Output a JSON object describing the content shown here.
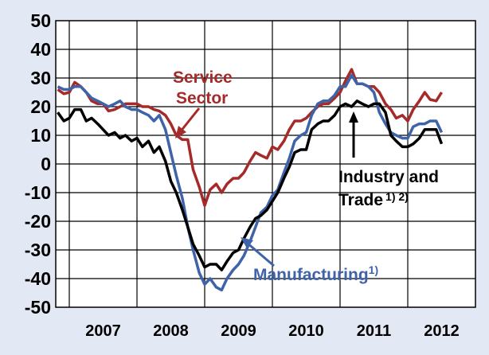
{
  "chart_data": {
    "type": "line",
    "title": "",
    "xlabel": "",
    "ylabel": "",
    "ylim": [
      -50,
      50
    ],
    "yticks": [
      50,
      40,
      30,
      20,
      10,
      0,
      -10,
      -20,
      -30,
      -40,
      -50
    ],
    "xlim": [
      2006.3,
      2012.5
    ],
    "xtick_labels": [
      {
        "label": "2007",
        "x": 2007.0
      },
      {
        "label": "2008",
        "x": 2008.0
      },
      {
        "label": "2009",
        "x": 2009.0
      },
      {
        "label": "2010",
        "x": 2010.0
      },
      {
        "label": "2011",
        "x": 2011.0
      },
      {
        "label": "2012",
        "x": 2012.0
      }
    ],
    "grid": true,
    "series": [
      {
        "name": "Service Sector",
        "color": "#a52a2a",
        "points": [
          [
            2006.33,
            26
          ],
          [
            2006.42,
            24.5
          ],
          [
            2006.5,
            25
          ],
          [
            2006.58,
            28.5
          ],
          [
            2006.67,
            27
          ],
          [
            2006.75,
            25
          ],
          [
            2006.83,
            22
          ],
          [
            2006.92,
            21
          ],
          [
            2007.0,
            21
          ],
          [
            2007.08,
            18.5
          ],
          [
            2007.17,
            19
          ],
          [
            2007.25,
            20
          ],
          [
            2007.33,
            21
          ],
          [
            2007.42,
            21
          ],
          [
            2007.5,
            21
          ],
          [
            2007.58,
            20
          ],
          [
            2007.67,
            20
          ],
          [
            2007.75,
            19
          ],
          [
            2007.83,
            18.5
          ],
          [
            2007.92,
            17
          ],
          [
            2008.0,
            14
          ],
          [
            2008.08,
            10
          ],
          [
            2008.17,
            8.5
          ],
          [
            2008.25,
            8.5
          ],
          [
            2008.33,
            -2
          ],
          [
            2008.42,
            -8
          ],
          [
            2008.5,
            -14.5
          ],
          [
            2008.58,
            -9
          ],
          [
            2008.67,
            -7
          ],
          [
            2008.75,
            -10
          ],
          [
            2008.83,
            -7
          ],
          [
            2008.92,
            -5
          ],
          [
            2009.0,
            -5
          ],
          [
            2009.08,
            -3
          ],
          [
            2009.17,
            1
          ],
          [
            2009.25,
            4
          ],
          [
            2009.33,
            3
          ],
          [
            2009.42,
            2
          ],
          [
            2009.5,
            6
          ],
          [
            2009.58,
            5
          ],
          [
            2009.67,
            8
          ],
          [
            2009.75,
            12
          ],
          [
            2009.83,
            15
          ],
          [
            2009.92,
            15
          ],
          [
            2010.0,
            16
          ],
          [
            2010.08,
            18
          ],
          [
            2010.17,
            20
          ],
          [
            2010.25,
            21
          ],
          [
            2010.33,
            21
          ],
          [
            2010.42,
            23
          ],
          [
            2010.5,
            25
          ],
          [
            2010.58,
            29
          ],
          [
            2010.67,
            33
          ],
          [
            2010.75,
            28
          ],
          [
            2010.83,
            28
          ],
          [
            2010.92,
            27
          ],
          [
            2011.0,
            27
          ],
          [
            2011.08,
            25
          ],
          [
            2011.17,
            21
          ],
          [
            2011.25,
            19
          ],
          [
            2011.33,
            16
          ],
          [
            2011.42,
            17
          ],
          [
            2011.5,
            15
          ],
          [
            2011.58,
            19
          ],
          [
            2011.67,
            22
          ],
          [
            2011.75,
            25
          ],
          [
            2011.83,
            22.5
          ],
          [
            2011.92,
            22
          ],
          [
            2012.0,
            25
          ]
        ]
      },
      {
        "name": "Manufacturing",
        "color": "#3f63a8",
        "points": [
          [
            2006.33,
            27
          ],
          [
            2006.42,
            26
          ],
          [
            2006.5,
            26
          ],
          [
            2006.58,
            27
          ],
          [
            2006.67,
            27
          ],
          [
            2006.75,
            25
          ],
          [
            2006.83,
            23
          ],
          [
            2006.92,
            22
          ],
          [
            2007.0,
            21
          ],
          [
            2007.08,
            20
          ],
          [
            2007.17,
            21
          ],
          [
            2007.25,
            22
          ],
          [
            2007.33,
            20
          ],
          [
            2007.42,
            19
          ],
          [
            2007.5,
            19
          ],
          [
            2007.58,
            18
          ],
          [
            2007.67,
            17
          ],
          [
            2007.75,
            15
          ],
          [
            2007.83,
            17
          ],
          [
            2007.92,
            12
          ],
          [
            2008.0,
            4
          ],
          [
            2008.08,
            -4
          ],
          [
            2008.17,
            -12
          ],
          [
            2008.25,
            -22
          ],
          [
            2008.33,
            -30
          ],
          [
            2008.42,
            -38
          ],
          [
            2008.5,
            -42
          ],
          [
            2008.58,
            -40
          ],
          [
            2008.67,
            -43
          ],
          [
            2008.75,
            -44
          ],
          [
            2008.83,
            -40
          ],
          [
            2008.92,
            -37
          ],
          [
            2009.0,
            -35
          ],
          [
            2009.08,
            -32
          ],
          [
            2009.17,
            -27
          ],
          [
            2009.25,
            -22
          ],
          [
            2009.33,
            -17
          ],
          [
            2009.42,
            -15
          ],
          [
            2009.5,
            -11
          ],
          [
            2009.58,
            -9
          ],
          [
            2009.67,
            -3
          ],
          [
            2009.75,
            2
          ],
          [
            2009.83,
            8
          ],
          [
            2009.92,
            10
          ],
          [
            2010.0,
            11
          ],
          [
            2010.08,
            17
          ],
          [
            2010.17,
            21
          ],
          [
            2010.25,
            22
          ],
          [
            2010.33,
            22
          ],
          [
            2010.42,
            24
          ],
          [
            2010.5,
            27
          ],
          [
            2010.58,
            27
          ],
          [
            2010.67,
            31
          ],
          [
            2010.75,
            28
          ],
          [
            2010.83,
            28
          ],
          [
            2010.92,
            27
          ],
          [
            2011.0,
            25
          ],
          [
            2011.08,
            18
          ],
          [
            2011.17,
            14
          ],
          [
            2011.25,
            11
          ],
          [
            2011.33,
            10
          ],
          [
            2011.42,
            9
          ],
          [
            2011.5,
            9
          ],
          [
            2011.58,
            13
          ],
          [
            2011.67,
            14
          ],
          [
            2011.75,
            14
          ],
          [
            2011.83,
            15
          ],
          [
            2011.92,
            15
          ],
          [
            2012.0,
            11
          ]
        ]
      },
      {
        "name": "Industry and Trade",
        "color": "#000000",
        "points": [
          [
            2006.33,
            18
          ],
          [
            2006.42,
            15
          ],
          [
            2006.5,
            16
          ],
          [
            2006.58,
            19
          ],
          [
            2006.67,
            19
          ],
          [
            2006.75,
            15
          ],
          [
            2006.83,
            16
          ],
          [
            2006.92,
            14
          ],
          [
            2007.0,
            12
          ],
          [
            2007.08,
            10
          ],
          [
            2007.17,
            11
          ],
          [
            2007.25,
            9
          ],
          [
            2007.33,
            10
          ],
          [
            2007.42,
            8
          ],
          [
            2007.5,
            9
          ],
          [
            2007.58,
            6
          ],
          [
            2007.67,
            8
          ],
          [
            2007.75,
            4
          ],
          [
            2007.83,
            6
          ],
          [
            2007.92,
            1
          ],
          [
            2008.0,
            -6
          ],
          [
            2008.08,
            -10
          ],
          [
            2008.17,
            -16
          ],
          [
            2008.25,
            -22
          ],
          [
            2008.33,
            -28
          ],
          [
            2008.42,
            -32
          ],
          [
            2008.5,
            -36
          ],
          [
            2008.58,
            -35
          ],
          [
            2008.67,
            -35
          ],
          [
            2008.75,
            -37
          ],
          [
            2008.83,
            -34
          ],
          [
            2008.92,
            -31
          ],
          [
            2009.0,
            -30
          ],
          [
            2009.08,
            -26
          ],
          [
            2009.17,
            -22
          ],
          [
            2009.25,
            -19
          ],
          [
            2009.33,
            -18
          ],
          [
            2009.42,
            -16
          ],
          [
            2009.5,
            -13
          ],
          [
            2009.58,
            -10
          ],
          [
            2009.67,
            -5
          ],
          [
            2009.75,
            -1
          ],
          [
            2009.83,
            4
          ],
          [
            2009.92,
            5
          ],
          [
            2010.0,
            5
          ],
          [
            2010.08,
            12
          ],
          [
            2010.17,
            14
          ],
          [
            2010.25,
            15
          ],
          [
            2010.33,
            15
          ],
          [
            2010.42,
            17
          ],
          [
            2010.5,
            20
          ],
          [
            2010.58,
            21
          ],
          [
            2010.67,
            20
          ],
          [
            2010.75,
            22
          ],
          [
            2010.83,
            21
          ],
          [
            2010.92,
            20
          ],
          [
            2011.0,
            21
          ],
          [
            2011.08,
            21
          ],
          [
            2011.17,
            18
          ],
          [
            2011.25,
            10
          ],
          [
            2011.33,
            8
          ],
          [
            2011.42,
            6
          ],
          [
            2011.5,
            6
          ],
          [
            2011.58,
            7
          ],
          [
            2011.67,
            9
          ],
          [
            2011.75,
            12
          ],
          [
            2011.83,
            12
          ],
          [
            2011.92,
            12
          ],
          [
            2012.0,
            7
          ]
        ]
      }
    ],
    "annotations": [
      {
        "text": "Service",
        "sup": "",
        "series": "Service Sector",
        "color": "#a52a2a"
      },
      {
        "text": "Sector",
        "sup": "",
        "series": "Service Sector",
        "color": "#a52a2a"
      },
      {
        "text": "Manufacturing",
        "sup": "1)",
        "series": "Manufacturing",
        "color": "#3f63a8"
      },
      {
        "text": "Industry and",
        "sup": "",
        "series": "Industry and Trade",
        "color": "#000000"
      },
      {
        "text": "Trade",
        "sup": "1) 2)",
        "series": "Industry and Trade",
        "color": "#000000"
      }
    ]
  }
}
